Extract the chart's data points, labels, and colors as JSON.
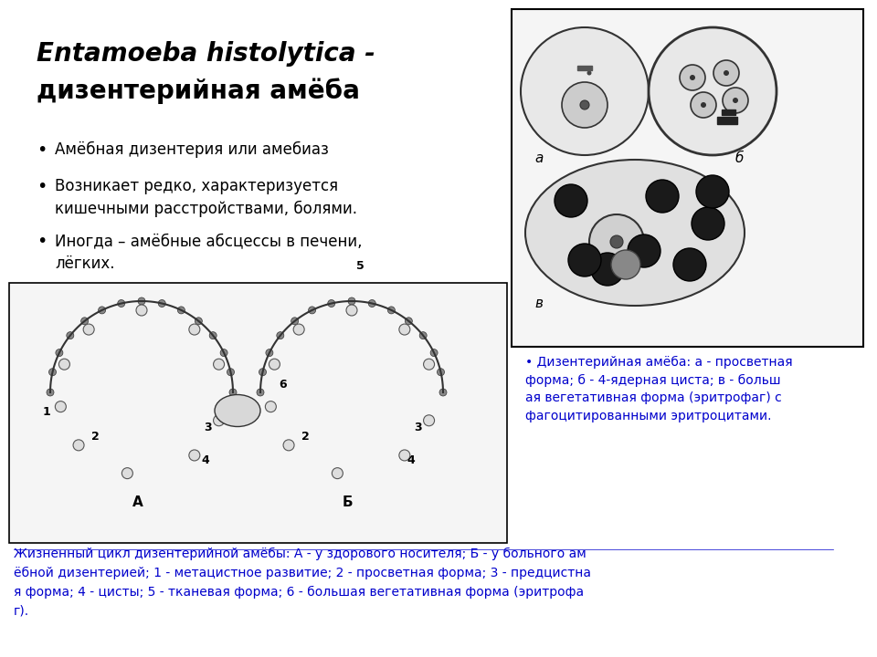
{
  "title_line1": "Entamoeba histolytica -",
  "title_line2": "дизентерийная амёба",
  "bullets": [
    "Амёбная дизентерия или амебиаз",
    "Возникает редко, характеризуется\nкишечными расстройствами, болями.",
    "Иногда – амёбные абсцессы в печени,\nлёгких."
  ],
  "caption_right": "Дизентерийная амёба: а - просветная\nформа; б - 4-ядерная циста; в - больш\nая вегетативная форма (эритрофаг) с\nфагоцитированными эритроцитами.",
  "caption_bottom": "Жизненный цикл дизентерийной амёбы: А - у здорового носителя; Б - у больного ам\nёбной дизентерией; 1 - метацистное развитие; 2 - просветная форма; 3 - предцистна\nя форма; 4 - цисты; 5 - тканевая форма; 6 - большая вегетативная форма (эритрофа\nг).",
  "bg_color": "#ffffff",
  "title_color": "#000000",
  "text_color": "#000000",
  "link_color": "#0000cc",
  "border_color": "#000000"
}
